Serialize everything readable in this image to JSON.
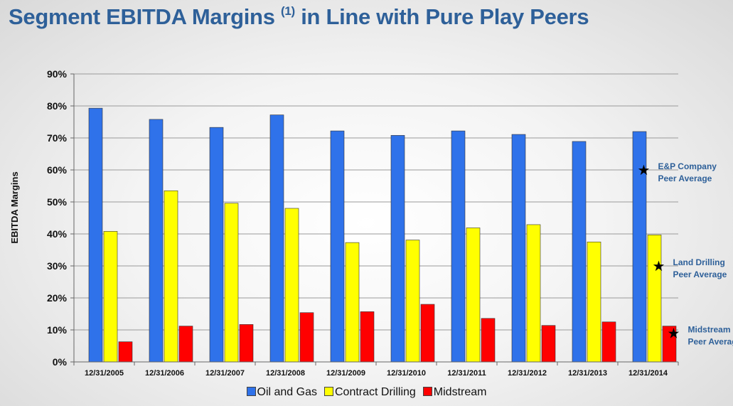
{
  "title_main": "Segment EBITDA Margins",
  "title_sup": "(1)",
  "title_rest": "in Line with Pure Play Peers",
  "chart_data": {
    "type": "bar",
    "categories": [
      "12/31/2005",
      "12/31/2006",
      "12/31/2007",
      "12/31/2008",
      "12/31/2009",
      "12/31/2010",
      "12/31/2011",
      "12/31/2012",
      "12/31/2013",
      "12/31/2014"
    ],
    "series": [
      {
        "name": "Oil and Gas",
        "color": "#2f72ea",
        "values": [
          79.3,
          75.8,
          73.3,
          77.2,
          72.2,
          70.8,
          72.2,
          71.1,
          68.9,
          72.0
        ]
      },
      {
        "name": "Contract Drilling",
        "color": "#ffff00",
        "values": [
          40.8,
          53.5,
          49.6,
          48.0,
          37.3,
          38.1,
          41.9,
          42.9,
          37.5,
          39.7
        ]
      },
      {
        "name": "Midstream",
        "color": "#ff0000",
        "values": [
          6.3,
          11.2,
          11.7,
          15.4,
          15.7,
          18.0,
          13.6,
          11.4,
          12.5,
          11.2
        ]
      }
    ],
    "ylabel": "EBITDA Margins",
    "ylim": [
      0,
      90
    ],
    "yticks": [
      "0%",
      "10%",
      "20%",
      "30%",
      "40%",
      "50%",
      "60%",
      "70%",
      "80%",
      "90%"
    ],
    "grid": true,
    "legend": "bottom",
    "annotations": [
      {
        "line1": "E&P Company",
        "line2": "Peer Average",
        "value": 60,
        "series": "Oil and Gas"
      },
      {
        "line1": "Land Drilling",
        "line2": "Peer Average",
        "value": 30,
        "series": "Contract Drilling"
      },
      {
        "line1": "Midstream",
        "line2": "Peer Average",
        "value": 9,
        "series": "Midstream"
      }
    ]
  }
}
